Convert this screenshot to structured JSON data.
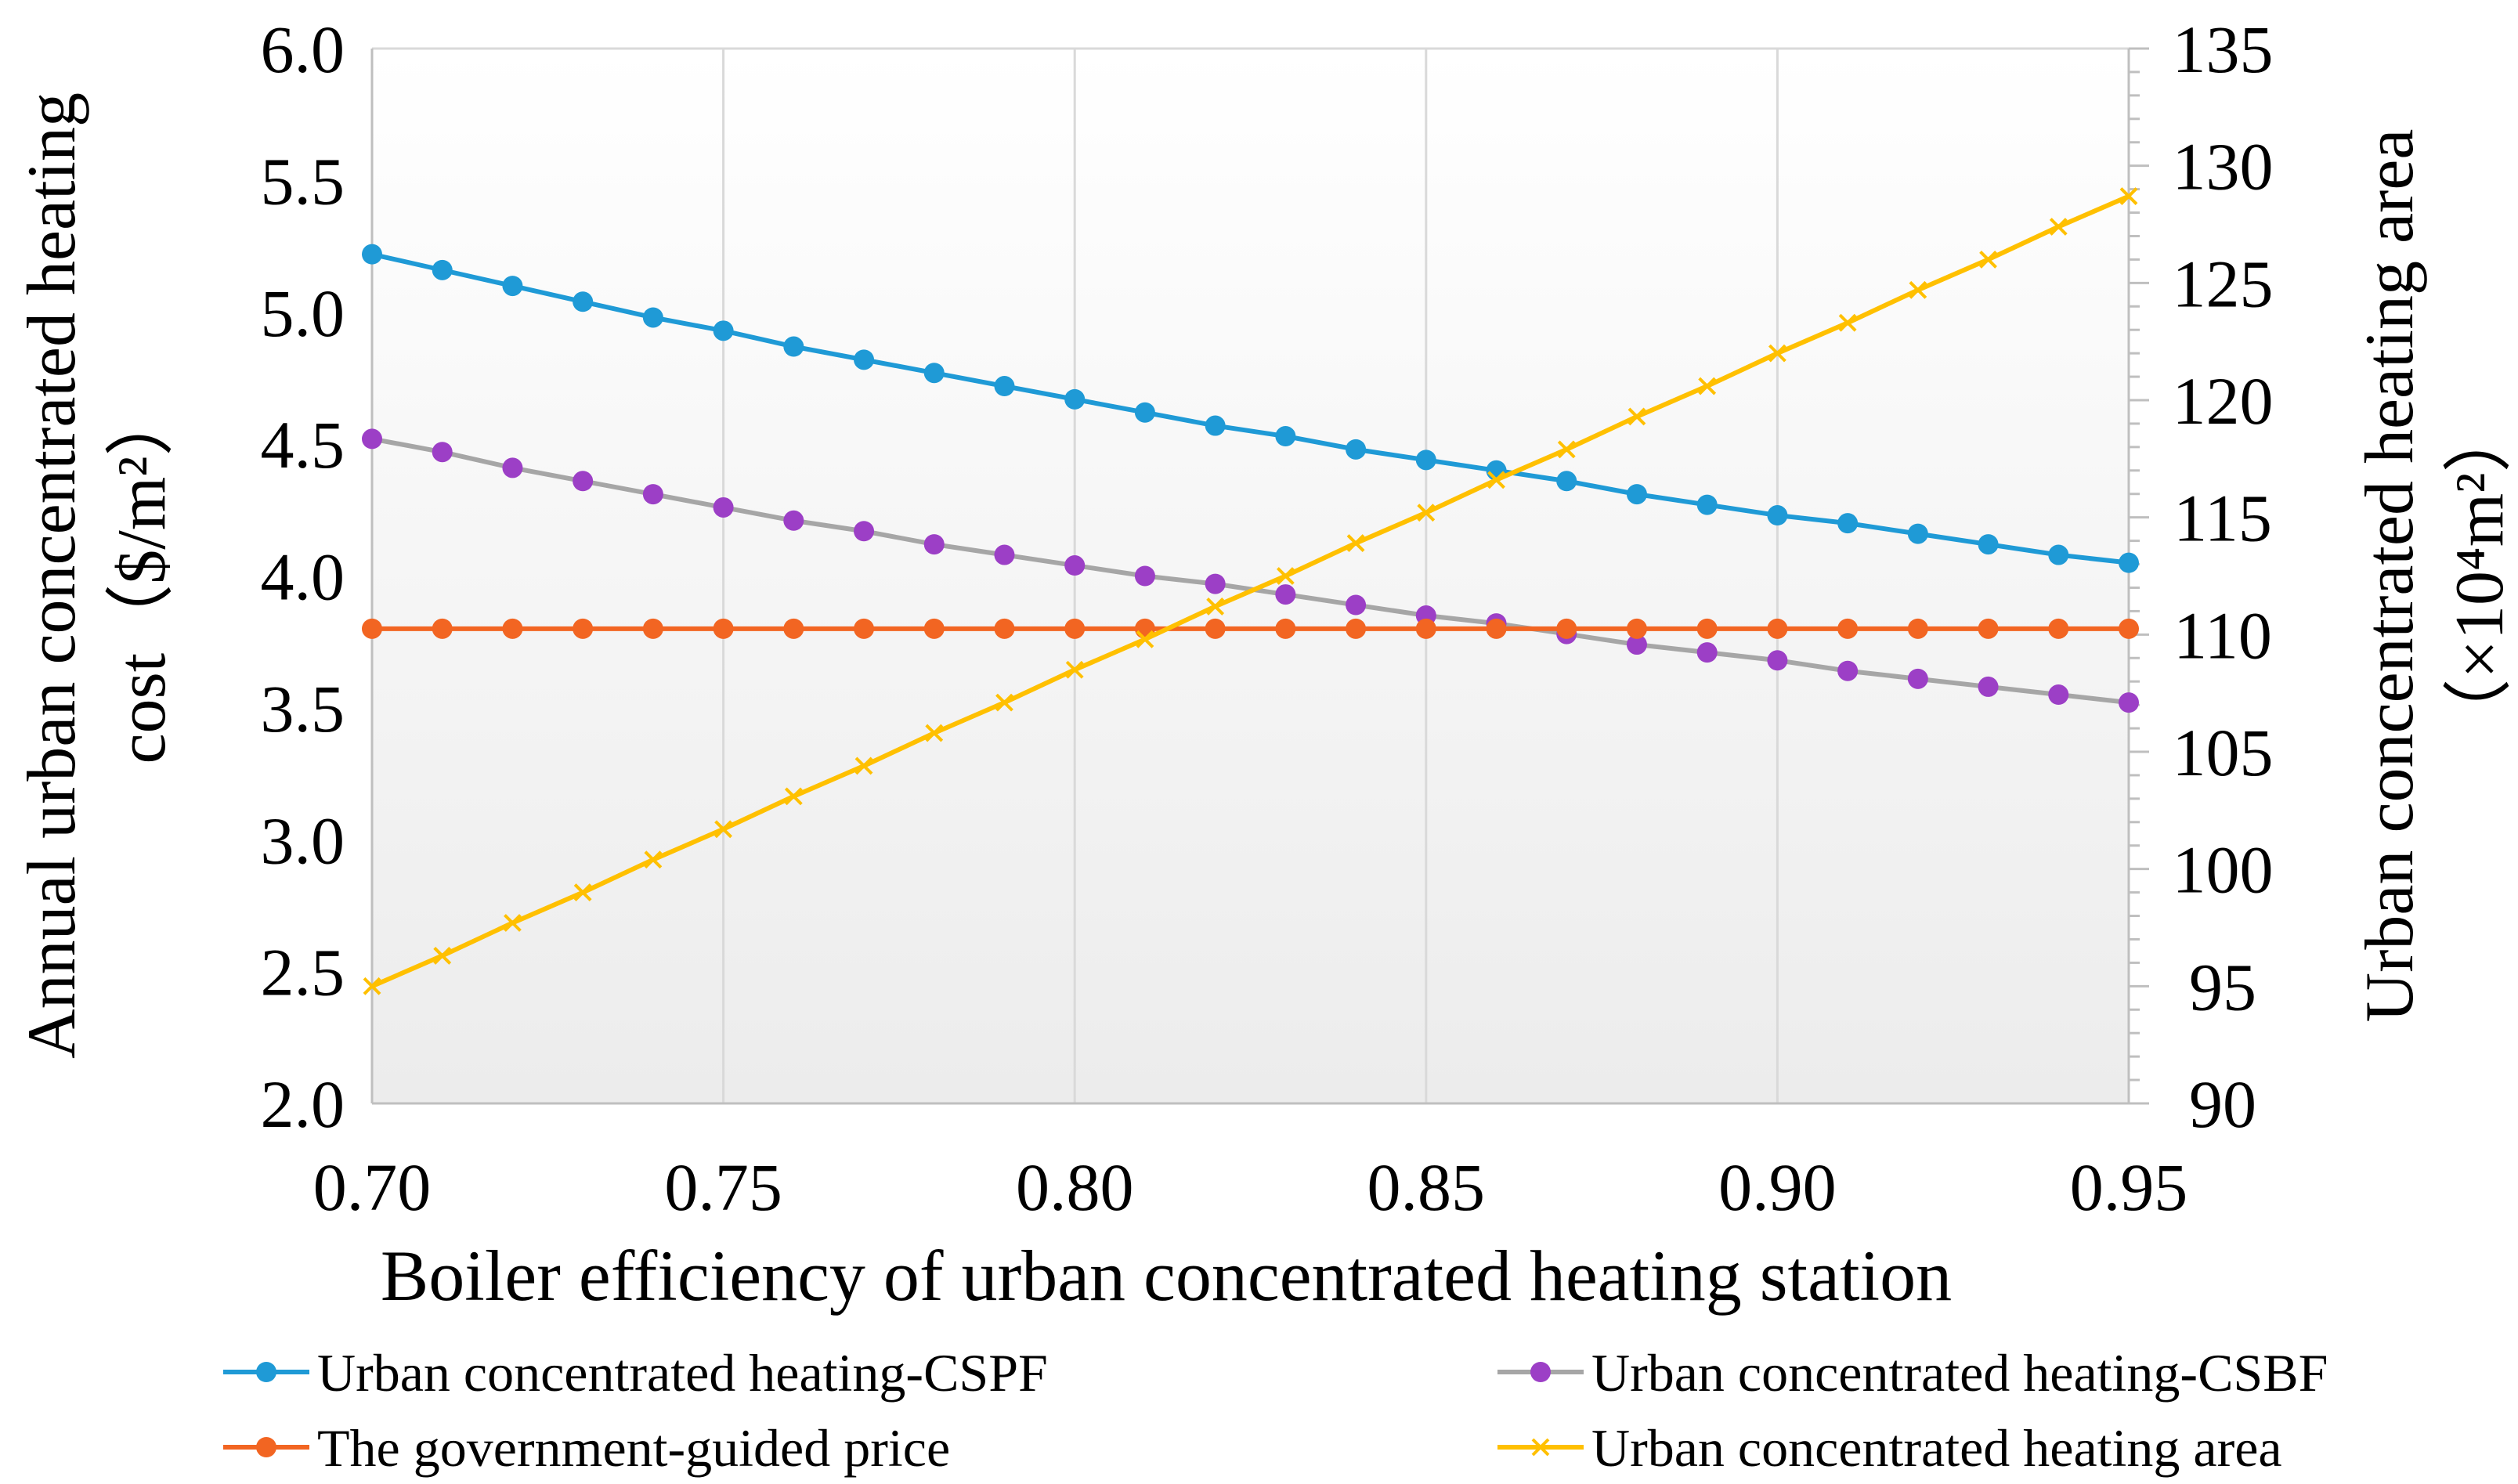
{
  "chart_data": {
    "type": "line",
    "x": [
      0.7,
      0.71,
      0.72,
      0.73,
      0.74,
      0.75,
      0.76,
      0.77,
      0.78,
      0.79,
      0.8,
      0.81,
      0.82,
      0.83,
      0.84,
      0.85,
      0.86,
      0.87,
      0.88,
      0.89,
      0.9,
      0.91,
      0.92,
      0.93,
      0.94,
      0.95
    ],
    "x_ticks": [
      "0.70",
      "0.75",
      "0.80",
      "0.85",
      "0.90",
      "0.95"
    ],
    "x_tick_values": [
      0.7,
      0.75,
      0.8,
      0.85,
      0.9,
      0.95
    ],
    "xlim": [
      0.7,
      0.95
    ],
    "xlabel": "Boiler efficiency of urban concentrated heating station",
    "ylabel_left_line1": "Annual urban concentrated heating",
    "ylabel_left_line2": "cost（$/m²）",
    "ylabel_right_line1": "Urban concentrated heating area",
    "ylabel_right_line2": "（×10⁴m²）",
    "ylim_left": [
      2.0,
      6.0
    ],
    "ylim_right": [
      90,
      135
    ],
    "y_ticks_left": [
      "2.0",
      "2.5",
      "3.0",
      "3.5",
      "4.0",
      "4.5",
      "5.0",
      "5.5",
      "6.0"
    ],
    "y_tick_values_left": [
      2.0,
      2.5,
      3.0,
      3.5,
      4.0,
      4.5,
      5.0,
      5.5,
      6.0
    ],
    "y_ticks_right": [
      "90",
      "95",
      "100",
      "105",
      "110",
      "115",
      "120",
      "125",
      "130",
      "135"
    ],
    "y_tick_values_right": [
      90,
      95,
      100,
      105,
      110,
      115,
      120,
      125,
      130,
      135
    ],
    "grid": "vertical",
    "legend_position": "bottom",
    "series": [
      {
        "name": "Urban concentrated heating-CSPF",
        "axis": "left",
        "marker": "circle",
        "line_color": "#1f9ad6",
        "marker_color": "#1f9ad6",
        "values": [
          5.22,
          5.16,
          5.1,
          5.04,
          4.98,
          4.93,
          4.87,
          4.82,
          4.77,
          4.72,
          4.67,
          4.62,
          4.57,
          4.53,
          4.48,
          4.44,
          4.4,
          4.36,
          4.31,
          4.27,
          4.23,
          4.2,
          4.16,
          4.12,
          4.08,
          4.05
        ]
      },
      {
        "name": "Urban concentrated heating-CSBF",
        "axis": "left",
        "marker": "circle",
        "line_color": "#a6a6a6",
        "marker_color": "#9c3fc6",
        "values": [
          4.52,
          4.47,
          4.41,
          4.36,
          4.31,
          4.26,
          4.21,
          4.17,
          4.12,
          4.08,
          4.04,
          4.0,
          3.97,
          3.93,
          3.89,
          3.85,
          3.82,
          3.78,
          3.74,
          3.71,
          3.68,
          3.64,
          3.61,
          3.58,
          3.55,
          3.52
        ]
      },
      {
        "name": "The government-guided price",
        "axis": "left",
        "marker": "circle",
        "line_color": "#f26522",
        "marker_color": "#f26522",
        "values": [
          3.8,
          3.8,
          3.8,
          3.8,
          3.8,
          3.8,
          3.8,
          3.8,
          3.8,
          3.8,
          3.8,
          3.8,
          3.8,
          3.8,
          3.8,
          3.8,
          3.8,
          3.8,
          3.8,
          3.8,
          3.8,
          3.8,
          3.8,
          3.8,
          3.8,
          3.8
        ]
      },
      {
        "name": "Urban concentrated heating area",
        "axis": "right",
        "marker": "x",
        "line_color": "#ffc000",
        "marker_color": "#ffc000",
        "values": [
          95.0,
          96.3,
          97.7,
          99.0,
          100.4,
          101.7,
          103.1,
          104.4,
          105.8,
          107.1,
          108.5,
          109.8,
          111.2,
          112.5,
          113.9,
          115.2,
          116.6,
          117.9,
          119.3,
          120.6,
          122.0,
          123.3,
          124.7,
          126.0,
          127.4,
          128.7
        ]
      }
    ]
  }
}
